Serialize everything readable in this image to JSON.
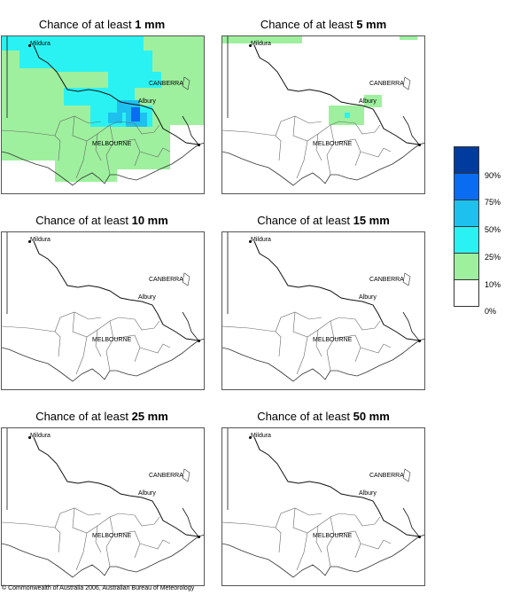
{
  "panels": [
    {
      "prefix": "Chance of at least ",
      "amount": "1 mm"
    },
    {
      "prefix": "Chance of at least ",
      "amount": "5 mm"
    },
    {
      "prefix": "Chance of at least ",
      "amount": "10 mm"
    },
    {
      "prefix": "Chance of at least ",
      "amount": "15 mm"
    },
    {
      "prefix": "Chance of at least ",
      "amount": "25 mm"
    },
    {
      "prefix": "Chance of at least ",
      "amount": "50 mm"
    }
  ],
  "place_labels": {
    "mildura": "Mildura",
    "canberra": "CANBERRA",
    "albury": "Albury",
    "melbourne": "MELBOURNE"
  },
  "legend": {
    "labels": [
      "90%",
      "75%",
      "50%",
      "25%",
      "10%",
      "0%"
    ],
    "colors": [
      "#003c9e",
      "#0a6cf0",
      "#1ec0ee",
      "#2af2f2",
      "#9ef09e",
      "#ffffff"
    ]
  },
  "copyright": "© Commonwealth of Australia 2006, Australian Bureau of Meteorology"
}
